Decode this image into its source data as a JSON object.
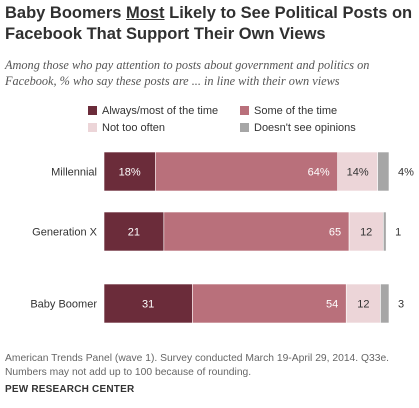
{
  "title": {
    "before": "Baby Boomers ",
    "emph": "Most",
    "after": " Likely to See Political Posts on Facebook That Support Their Own Views"
  },
  "subtitle": "Among those who pay attention to posts about government and politics on Facebook, % who say these posts are ... in line with their own views",
  "note": "American Trends Panel (wave 1). Survey conducted March 19-April 29, 2014. Q33e. Numbers may not add up to 100 because of rounding.",
  "source": "PEW RESEARCH CENTER",
  "chart_data": {
    "type": "bar",
    "orientation": "horizontal",
    "stacked": true,
    "categories": [
      "Millennial",
      "Generation X",
      "Baby Boomer"
    ],
    "series": [
      {
        "name": "Always/most of the time",
        "color": "#6b2c3a",
        "values": [
          18,
          21,
          31
        ],
        "labels": [
          "18%",
          "21",
          "31"
        ]
      },
      {
        "name": "Some of the time",
        "color": "#b9707b",
        "values": [
          64,
          65,
          54
        ],
        "labels": [
          "64%",
          "65",
          "54"
        ]
      },
      {
        "name": "Not too often",
        "color": "#ecd5d8",
        "values": [
          14,
          12,
          12
        ],
        "labels": [
          "14%",
          "12",
          "12"
        ]
      },
      {
        "name": "Doesn't see opinions",
        "color": "#a6a6a6",
        "values": [
          4,
          1,
          3
        ],
        "labels": [
          "4%",
          "1",
          "3"
        ]
      }
    ],
    "legend": "top",
    "grid": false
  }
}
